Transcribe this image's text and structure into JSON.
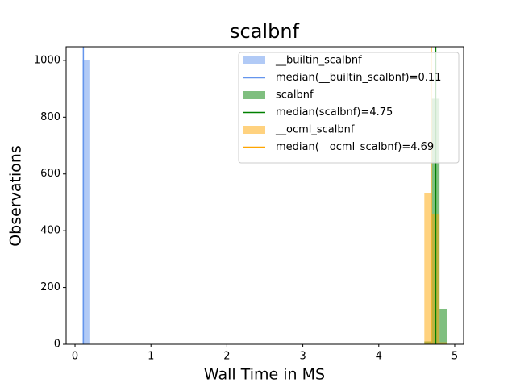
{
  "chart_data": {
    "type": "histogram",
    "title": "scalbnf",
    "xlabel": "Wall Time in MS",
    "ylabel": "Observations",
    "xlim": [
      -0.117,
      5.117
    ],
    "ylim": [
      0,
      1048
    ],
    "xticks": [
      0,
      1,
      2,
      3,
      4,
      5
    ],
    "yticks": [
      0,
      200,
      400,
      600,
      800,
      1000
    ],
    "legend": "upper right",
    "series": [
      {
        "name": "__builtin_scalbnf",
        "color": "#6495ed",
        "bins": [
          0.1,
          0.2
        ],
        "values": [
          1000
        ]
      },
      {
        "name": "scalbnf",
        "color": "#008000",
        "bins": [
          4.6,
          4.7,
          4.8,
          4.9
        ],
        "values": [
          10,
          865,
          125
        ]
      },
      {
        "name": "__ocml_scalbnf",
        "color": "#ffa500",
        "bins": [
          4.6,
          4.7,
          4.8,
          4.9
        ],
        "values": [
          533,
          460,
          7
        ]
      }
    ],
    "medians": [
      {
        "name": "median(__builtin_scalbnf)=0.11",
        "color": "#6495ed",
        "value": 0.11
      },
      {
        "name": "median(scalbnf)=4.75",
        "color": "#008000",
        "value": 4.75
      },
      {
        "name": "median(__ocml_scalbnf)=4.69",
        "color": "#ffa500",
        "value": 4.69
      }
    ]
  }
}
